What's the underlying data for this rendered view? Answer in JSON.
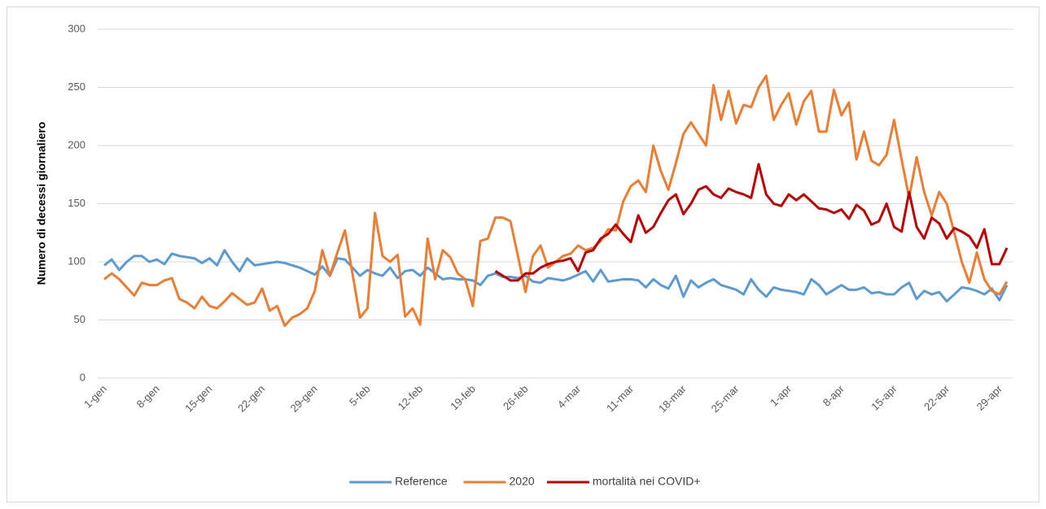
{
  "chart_data": {
    "type": "line",
    "y_label": "Numero di decessi giornaliero",
    "categories": [
      "1-gen",
      null,
      null,
      null,
      null,
      null,
      null,
      "8-gen",
      null,
      null,
      null,
      null,
      null,
      null,
      "15-gen",
      null,
      null,
      null,
      null,
      null,
      null,
      "22-gen",
      null,
      null,
      null,
      null,
      null,
      null,
      "29-gen",
      null,
      null,
      null,
      null,
      null,
      null,
      "5-feb",
      null,
      null,
      null,
      null,
      null,
      null,
      "12-feb",
      null,
      null,
      null,
      null,
      null,
      null,
      "19-feb",
      null,
      null,
      null,
      null,
      null,
      null,
      "26-feb",
      null,
      null,
      null,
      null,
      null,
      null,
      "4-mar",
      null,
      null,
      null,
      null,
      null,
      null,
      "11-mar",
      null,
      null,
      null,
      null,
      null,
      null,
      "18-mar",
      null,
      null,
      null,
      null,
      null,
      null,
      "25-mar",
      null,
      null,
      null,
      null,
      null,
      null,
      "1-apr",
      null,
      null,
      null,
      null,
      null,
      null,
      "8-apr",
      null,
      null,
      null,
      null,
      null,
      null,
      "15-apr",
      null,
      null,
      null,
      null,
      null,
      null,
      "22-apr",
      null,
      null,
      null,
      null,
      null,
      null,
      "29-apr",
      null
    ],
    "series": [
      {
        "name": "Reference",
        "color": "#5b9bd5",
        "values": [
          97,
          102,
          93,
          100,
          105,
          105,
          100,
          102,
          98,
          107,
          105,
          104,
          103,
          99,
          103,
          97,
          110,
          100,
          92,
          103,
          97,
          98,
          99,
          100,
          99,
          97,
          95,
          92,
          89,
          96,
          88,
          103,
          102,
          95,
          88,
          93,
          90,
          88,
          95,
          86,
          92,
          93,
          88,
          95,
          90,
          85,
          86,
          85,
          85,
          84,
          80,
          88,
          90,
          87,
          87,
          86,
          88,
          83,
          82,
          86,
          85,
          84,
          86,
          89,
          92,
          83,
          93,
          83,
          84,
          85,
          85,
          84,
          78,
          85,
          80,
          77,
          88,
          70,
          84,
          78,
          82,
          85,
          80,
          78,
          76,
          72,
          85,
          76,
          70,
          78,
          76,
          75,
          74,
          72,
          85,
          80,
          72,
          76,
          80,
          76,
          76,
          78,
          73,
          74,
          72,
          72,
          78,
          82,
          68,
          75,
          72,
          74,
          66,
          72,
          78,
          77,
          75,
          72,
          77,
          67,
          80
        ]
      },
      {
        "name": "2020",
        "color": "#ed7d31",
        "values": [
          85,
          90,
          85,
          78,
          71,
          82,
          80,
          80,
          84,
          86,
          68,
          65,
          60,
          70,
          62,
          60,
          66,
          73,
          68,
          63,
          65,
          77,
          58,
          62,
          45,
          52,
          55,
          60,
          75,
          110,
          88,
          108,
          127,
          90,
          52,
          60,
          142,
          105,
          100,
          106,
          53,
          60,
          46,
          120,
          85,
          110,
          104,
          90,
          85,
          62,
          118,
          120,
          138,
          138,
          135,
          105,
          74,
          105,
          114,
          95,
          100,
          105,
          107,
          114,
          110,
          112,
          118,
          128,
          127,
          152,
          165,
          170,
          160,
          200,
          178,
          162,
          185,
          210,
          220,
          210,
          200,
          252,
          222,
          247,
          219,
          235,
          233,
          250,
          260,
          222,
          235,
          245,
          218,
          238,
          247,
          212,
          212,
          248,
          226,
          237,
          188,
          212,
          187,
          183,
          192,
          222,
          188,
          155,
          190,
          160,
          140,
          160,
          150,
          125,
          100,
          82,
          108,
          85,
          75,
          72,
          83
        ]
      },
      {
        "name": "mortalità nei COVID+",
        "color": "#c00000",
        "values": [
          null,
          null,
          null,
          null,
          null,
          null,
          null,
          null,
          null,
          null,
          null,
          null,
          null,
          null,
          null,
          null,
          null,
          null,
          null,
          null,
          null,
          null,
          null,
          null,
          null,
          null,
          null,
          null,
          null,
          null,
          null,
          null,
          null,
          null,
          null,
          null,
          null,
          null,
          null,
          null,
          null,
          null,
          null,
          null,
          null,
          null,
          null,
          null,
          null,
          null,
          null,
          null,
          92,
          88,
          84,
          84,
          90,
          90,
          95,
          98,
          100,
          101,
          103,
          92,
          108,
          110,
          120,
          124,
          132,
          124,
          117,
          140,
          125,
          130,
          142,
          153,
          158,
          141,
          150,
          162,
          165,
          158,
          155,
          163,
          160,
          158,
          155,
          184,
          158,
          150,
          148,
          158,
          153,
          158,
          152,
          146,
          145,
          142,
          145,
          137,
          149,
          144,
          132,
          135,
          150,
          130,
          126,
          160,
          130,
          120,
          138,
          133,
          120,
          129,
          126,
          122,
          112,
          128,
          98,
          98,
          112
        ]
      }
    ],
    "ylim": [
      0,
      300
    ],
    "yticks": [
      0,
      50,
      100,
      150,
      200,
      250,
      300
    ],
    "grid": true,
    "legend": "bottom"
  }
}
